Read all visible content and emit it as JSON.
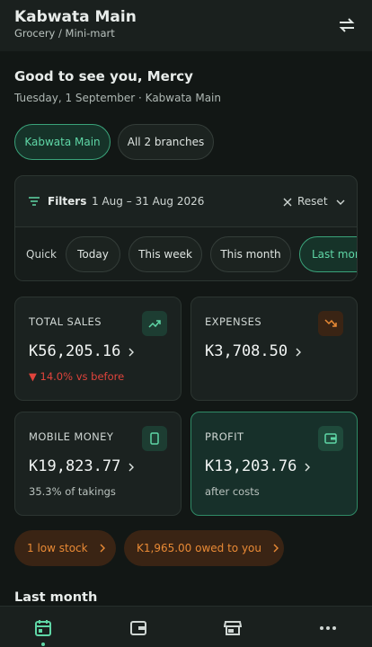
{
  "header": {
    "title": "Kabwata Main",
    "subtitle": "Grocery / Mini-mart"
  },
  "greeting": {
    "title": "Good to see you, Mercy",
    "date": "Tuesday, 1 September · Kabwata Main"
  },
  "branches": [
    "Kabwata Main",
    "All 2 branches"
  ],
  "filters": {
    "label": "Filters",
    "range": "1 Aug – 31 Aug 2026",
    "reset": "Reset",
    "quick_label": "Quick",
    "quick": [
      "Today",
      "This week",
      "This month",
      "Last month"
    ]
  },
  "stats": [
    {
      "label": "TOTAL SALES",
      "value": "K56,205.16",
      "note": "▼ 14.0% vs before"
    },
    {
      "label": "EXPENSES",
      "value": "K3,708.50"
    },
    {
      "label": "MOBILE MONEY",
      "value": "K19,823.77",
      "note": "35.3% of takings"
    },
    {
      "label": "PROFIT",
      "value": "K13,203.76",
      "note": "after costs"
    }
  ],
  "alerts": [
    "1 low stock",
    "K1,965.00 owed to you"
  ],
  "section_title": "Last month"
}
